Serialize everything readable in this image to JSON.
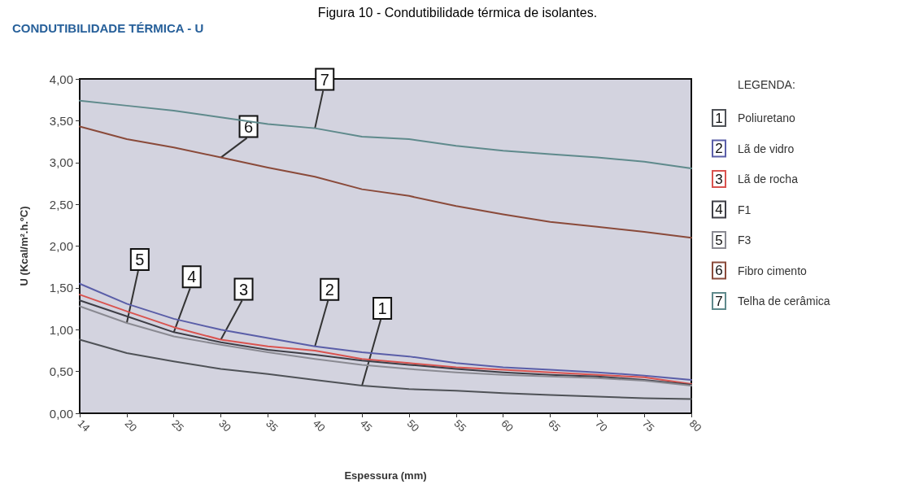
{
  "chart_data": {
    "type": "line",
    "title": "Figura 10 - Condutibilidade térmica de isolantes.",
    "subtitle": "CONDUTIBILIDADE TÉRMICA - U",
    "xlabel": "Espessura (mm)",
    "ylabel": "U (Kcal/m².h.ºC)",
    "legend_title": "LEGENDA:",
    "categories": [
      "14",
      "20",
      "25",
      "30",
      "35",
      "40",
      "45",
      "50",
      "55",
      "60",
      "65",
      "70",
      "75",
      "80"
    ],
    "series": [
      {
        "name": "Poliuretano",
        "color": "#4f5257",
        "values": [
          0.88,
          0.72,
          0.62,
          0.53,
          0.47,
          0.4,
          0.33,
          0.29,
          0.27,
          0.24,
          0.22,
          0.2,
          0.18,
          0.17
        ]
      },
      {
        "name": "Lã de vidro",
        "color": "#5a5ea8",
        "values": [
          1.55,
          1.31,
          1.13,
          1.0,
          0.9,
          0.8,
          0.73,
          0.68,
          0.6,
          0.55,
          0.52,
          0.49,
          0.45,
          0.4
        ]
      },
      {
        "name": "Lã de rocha",
        "color": "#d9534f",
        "values": [
          1.42,
          1.22,
          1.03,
          0.88,
          0.8,
          0.75,
          0.65,
          0.6,
          0.55,
          0.52,
          0.49,
          0.46,
          0.43,
          0.35
        ]
      },
      {
        "name": "F1",
        "color": "#3e3e46",
        "values": [
          1.35,
          1.16,
          0.97,
          0.85,
          0.76,
          0.7,
          0.63,
          0.58,
          0.53,
          0.49,
          0.46,
          0.44,
          0.4,
          0.34
        ]
      },
      {
        "name": "F3",
        "color": "#8a8a92",
        "values": [
          1.28,
          1.08,
          0.92,
          0.82,
          0.73,
          0.65,
          0.58,
          0.53,
          0.49,
          0.46,
          0.44,
          0.42,
          0.39,
          0.33
        ]
      },
      {
        "name": "Fibro cimento",
        "color": "#8a4a3a",
        "values": [
          3.43,
          3.28,
          3.18,
          3.06,
          2.94,
          2.83,
          2.68,
          2.6,
          2.48,
          2.38,
          2.29,
          2.23,
          2.17,
          2.1
        ]
      },
      {
        "name": "Telha de cerâmica",
        "color": "#5f8a8c",
        "values": [
          3.74,
          3.68,
          3.62,
          3.54,
          3.46,
          3.41,
          3.31,
          3.28,
          3.2,
          3.14,
          3.1,
          3.06,
          3.01,
          2.93
        ]
      }
    ],
    "annotations": [
      {
        "text": "1",
        "x": "45",
        "y": 0.33
      },
      {
        "text": "2",
        "x": "40",
        "y": 0.8
      },
      {
        "text": "3",
        "x": "30",
        "y": 0.88
      },
      {
        "text": "4",
        "x": "25",
        "y": 0.97
      },
      {
        "text": "5",
        "x": "20",
        "y": 1.08
      },
      {
        "text": "6",
        "x": "30",
        "y": 3.06
      },
      {
        "text": "7",
        "x": "40",
        "y": 3.41
      }
    ],
    "ylim": [
      0,
      4
    ],
    "yticks": [
      {
        "value": 0,
        "label": "0,00"
      },
      {
        "value": 0.5,
        "label": "0,50"
      },
      {
        "value": 1,
        "label": "1,00"
      },
      {
        "value": 1.5,
        "label": "1,50"
      },
      {
        "value": 2,
        "label": "2,00"
      },
      {
        "value": 2.5,
        "label": "2,50"
      },
      {
        "value": 3,
        "label": "3,00"
      },
      {
        "value": 3.5,
        "label": "3,50"
      },
      {
        "value": 4,
        "label": "4,00"
      }
    ],
    "grid": false,
    "legend": "right",
    "marker": "none",
    "line_style": "solid"
  }
}
